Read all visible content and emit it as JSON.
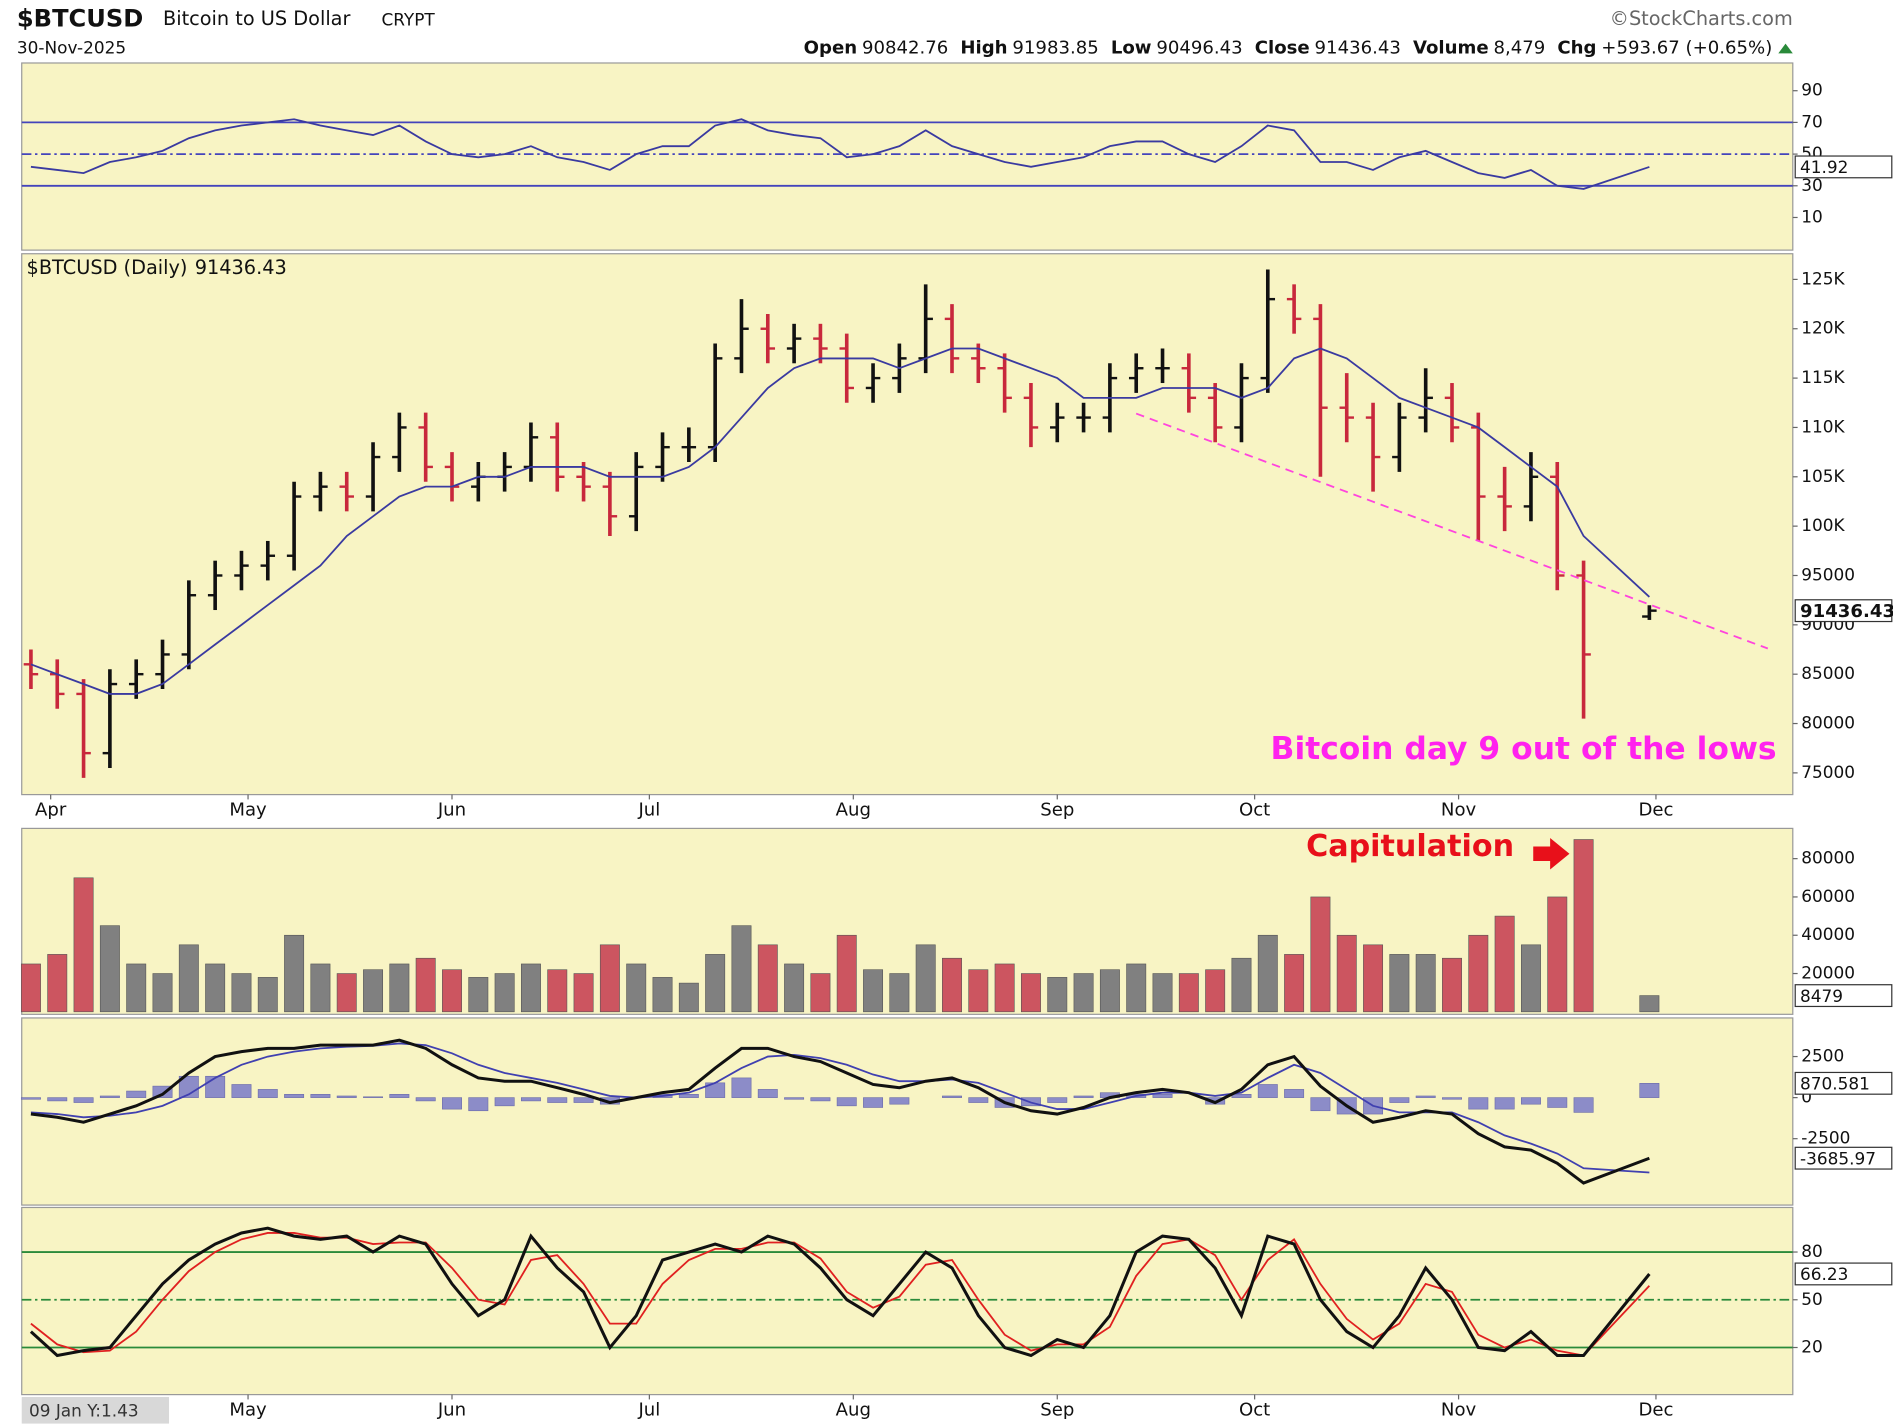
{
  "header": {
    "symbol": "$BTCUSD",
    "name": "Bitcoin to US Dollar",
    "exchange": "CRYPT",
    "date": "30-Nov-2025",
    "brand": "©StockCharts.com",
    "stats": [
      "Open",
      "High",
      "Low",
      "Close",
      "Volume",
      "Chg"
    ],
    "volume": "8,479",
    "change": "+593.67 (+0.65%)",
    "footer": "09 Jan Y:1.43"
  },
  "chart_data": [
    {
      "type": "ohlc",
      "panel_label": "$BTCUSD (Daily)",
      "up_color": "#111111",
      "down_color": "#c8283c",
      "close_tag": true,
      "xlim": [
        -4.4,
        264.8
      ],
      "xticks": [
        {
          "value": 0,
          "label": "Apr"
        },
        {
          "value": 30,
          "label": "May"
        },
        {
          "value": 61,
          "label": "Jun"
        },
        {
          "value": 91,
          "label": "Jul"
        },
        {
          "value": 122,
          "label": "Aug"
        },
        {
          "value": 153,
          "label": "Sep"
        },
        {
          "value": 183,
          "label": "Oct"
        },
        {
          "value": 214,
          "label": "Nov"
        },
        {
          "value": 244,
          "label": "Dec"
        }
      ],
      "x": [
        -3,
        1,
        5,
        9,
        13,
        17,
        21,
        25,
        29,
        33,
        37,
        41,
        45,
        49,
        53,
        57,
        61,
        65,
        69,
        73,
        77,
        81,
        85,
        89,
        93,
        97,
        101,
        105,
        109,
        113,
        117,
        121,
        125,
        129,
        133,
        137,
        141,
        145,
        149,
        153,
        157,
        161,
        165,
        169,
        173,
        177,
        181,
        185,
        189,
        193,
        197,
        201,
        205,
        209,
        213,
        217,
        221,
        225,
        229,
        233,
        243
      ],
      "open": [
        86000,
        85000,
        83000,
        77000,
        84000,
        85000,
        87000,
        93000,
        95000,
        96000,
        97000,
        103000,
        104000,
        103000,
        107000,
        110000,
        106000,
        104000,
        105000,
        106000,
        109000,
        105000,
        104000,
        101000,
        106000,
        108000,
        108000,
        117000,
        120000,
        118000,
        119000,
        118000,
        114000,
        115000,
        117000,
        121000,
        117000,
        116000,
        113000,
        110000,
        111000,
        111000,
        115000,
        116000,
        116000,
        113000,
        110000,
        115000,
        123000,
        121000,
        112000,
        111000,
        107000,
        111000,
        113000,
        110000,
        103000,
        102000,
        105000,
        95000,
        90842.76
      ],
      "high": [
        87500,
        86500,
        84500,
        85500,
        86500,
        88500,
        94500,
        96500,
        97500,
        98500,
        104500,
        105500,
        105500,
        108500,
        111500,
        111500,
        107500,
        106500,
        107500,
        110500,
        110500,
        106500,
        105500,
        107500,
        109500,
        110000,
        118500,
        123000,
        121500,
        120500,
        120500,
        119500,
        116500,
        118500,
        124500,
        122500,
        118500,
        117500,
        114500,
        112500,
        112500,
        116500,
        117500,
        118000,
        117500,
        114500,
        116500,
        126000,
        124500,
        122500,
        115500,
        112500,
        112500,
        116000,
        114500,
        111500,
        106000,
        107500,
        106500,
        96500,
        91983.85
      ],
      "low": [
        83500,
        81500,
        74500,
        75500,
        82500,
        83500,
        85500,
        91500,
        93500,
        94500,
        95500,
        101500,
        101500,
        101500,
        105500,
        104500,
        102500,
        102500,
        103500,
        104500,
        103500,
        102500,
        99000,
        99500,
        104500,
        106500,
        106500,
        115500,
        116500,
        116500,
        116500,
        112500,
        112500,
        113500,
        115500,
        115500,
        114500,
        111500,
        108000,
        108500,
        109500,
        109500,
        113500,
        114500,
        111500,
        108500,
        108500,
        113500,
        119500,
        105000,
        108500,
        103500,
        105500,
        109500,
        108500,
        98500,
        99500,
        100500,
        93500,
        80500,
        90496.43
      ],
      "close": [
        85000,
        83000,
        77000,
        84000,
        85000,
        87000,
        93000,
        95000,
        96000,
        97000,
        103000,
        104000,
        103000,
        107000,
        110000,
        106000,
        104000,
        105000,
        106000,
        109000,
        105000,
        104000,
        101000,
        106000,
        108000,
        108000,
        117000,
        120000,
        118000,
        119000,
        118000,
        114000,
        115000,
        117000,
        121000,
        117000,
        116000,
        113000,
        110000,
        111000,
        111000,
        115000,
        116000,
        116000,
        113000,
        110000,
        115000,
        123000,
        121000,
        112000,
        111000,
        107000,
        111000,
        113000,
        110000,
        103000,
        102000,
        105000,
        95000,
        87000,
        91436.43
      ],
      "series": [
        {
          "color": "#3a3aa0",
          "values": [
            86000,
            85000,
            84000,
            83000,
            83000,
            84000,
            86000,
            88000,
            90000,
            92000,
            94000,
            96000,
            99000,
            101000,
            103000,
            104000,
            104000,
            105000,
            105000,
            106000,
            106000,
            106000,
            105000,
            105000,
            105000,
            106000,
            108000,
            111000,
            114000,
            116000,
            117000,
            117000,
            117000,
            116000,
            117000,
            118000,
            118000,
            117000,
            116000,
            115000,
            113000,
            113000,
            113000,
            114000,
            114000,
            114000,
            113000,
            114000,
            117000,
            118000,
            117000,
            115000,
            113000,
            112000,
            111000,
            110000,
            108000,
            106000,
            104000,
            99000,
            92823
          ]
        },
        {
          "color": "#ff44dd",
          "dash": true,
          "x": [
            165,
            261
          ],
          "values": [
            111400,
            87600
          ]
        }
      ],
      "ylim": [
        72800,
        127600
      ],
      "yticks": [
        {
          "value": 125000,
          "label": "125K"
        },
        {
          "value": 120000,
          "label": "120K"
        },
        {
          "value": 115000,
          "label": "115K"
        },
        {
          "value": 110000,
          "label": "110K"
        },
        {
          "value": 105000,
          "label": "105K"
        },
        {
          "value": 100000,
          "label": "100K"
        },
        95000,
        90000,
        85000,
        80000,
        75000
      ],
      "annotations": [
        {
          "text": "Bitcoin day 9 out of the lows",
          "color": "#ff22ee"
        }
      ]
    },
    {
      "type": "line",
      "ylim": [
        -10.6,
        107.5
      ],
      "yticks": [
        90,
        70,
        50,
        30,
        10
      ],
      "ref_lines": [
        {
          "value": 70,
          "style": "solid"
        },
        {
          "value": 50,
          "style": "dashdot"
        },
        {
          "value": 30,
          "style": "solid"
        }
      ],
      "ref_color": "#4444bb",
      "series": [
        {
          "color": "#3a3aa0",
          "tag": true,
          "values": [
            42,
            40,
            38,
            45,
            48,
            52,
            60,
            65,
            68,
            70,
            72,
            68,
            65,
            62,
            68,
            58,
            50,
            48,
            50,
            55,
            48,
            45,
            40,
            50,
            55,
            55,
            68,
            72,
            65,
            62,
            60,
            48,
            50,
            55,
            65,
            55,
            50,
            45,
            42,
            45,
            48,
            55,
            58,
            58,
            50,
            45,
            55,
            68,
            65,
            45,
            45,
            40,
            48,
            52,
            45,
            38,
            35,
            40,
            30,
            28,
            41.92
          ]
        }
      ]
    },
    {
      "type": "bar",
      "tag": true,
      "ylim": [
        -1300,
        95800
      ],
      "yticks": [
        80000,
        60000,
        40000,
        20000
      ],
      "values": [
        25000,
        30000,
        70000,
        45000,
        25000,
        20000,
        35000,
        25000,
        20000,
        18000,
        40000,
        25000,
        20000,
        22000,
        25000,
        28000,
        22000,
        18000,
        20000,
        25000,
        22000,
        20000,
        35000,
        25000,
        18000,
        15000,
        30000,
        45000,
        35000,
        25000,
        20000,
        40000,
        22000,
        20000,
        35000,
        28000,
        22000,
        25000,
        20000,
        18000,
        20000,
        22000,
        25000,
        20000,
        20000,
        22000,
        28000,
        40000,
        30000,
        60000,
        40000,
        35000,
        30000,
        30000,
        28000,
        40000,
        50000,
        35000,
        60000,
        90000,
        8479
      ],
      "up_color": "#808080",
      "down_color": "#cc5560",
      "annotations": [
        {
          "text": "Capitulation",
          "color": "#e8101a"
        }
      ]
    },
    {
      "type": "line",
      "ylim": [
        -6540,
        4850
      ],
      "yticks": [
        2500,
        0,
        -2500
      ],
      "series": [
        {
          "style": "bar",
          "color": "#8c8cc8",
          "tag": true,
          "values": [
            -100,
            -200,
            -300,
            100,
            400,
            700,
            1300,
            1300,
            800,
            500,
            200,
            200,
            100,
            50,
            200,
            -200,
            -700,
            -800,
            -500,
            -200,
            -300,
            -300,
            -400,
            0,
            200,
            200,
            900,
            1200,
            500,
            -100,
            -200,
            -500,
            -600,
            -400,
            0,
            100,
            -300,
            -600,
            -500,
            -300,
            100,
            300,
            200,
            200,
            0,
            -400,
            200,
            800,
            500,
            -800,
            -1000,
            -1000,
            -300,
            100,
            -100,
            -700,
            -700,
            -400,
            -600,
            -900,
            870.581
          ]
        },
        {
          "color": "#4040b0",
          "values": [
            -900,
            -1000,
            -1200,
            -1100,
            -900,
            -500,
            200,
            1200,
            2000,
            2500,
            2800,
            3000,
            3100,
            3150,
            3300,
            3200,
            2700,
            2000,
            1500,
            1200,
            900,
            500,
            100,
            0,
            100,
            300,
            900,
            1800,
            2500,
            2600,
            2400,
            2000,
            1400,
            1000,
            1000,
            1100,
            900,
            300,
            -300,
            -700,
            -700,
            -300,
            100,
            300,
            300,
            100,
            300,
            1200,
            2000,
            1500,
            500,
            -500,
            -900,
            -900,
            -900,
            -1500,
            -2300,
            -2800,
            -3400,
            -4300,
            -4556.55
          ]
        },
        {
          "color": "#111111",
          "width": 2.5,
          "tag": true,
          "values": [
            -1000,
            -1200,
            -1500,
            -1000,
            -500,
            200,
            1500,
            2500,
            2800,
            3000,
            3000,
            3200,
            3200,
            3200,
            3500,
            3000,
            2000,
            1200,
            1000,
            1000,
            600,
            200,
            -300,
            0,
            300,
            500,
            1800,
            3000,
            3000,
            2500,
            2200,
            1500,
            800,
            600,
            1000,
            1200,
            600,
            -300,
            -800,
            -1000,
            -600,
            0,
            300,
            500,
            300,
            -300,
            500,
            2000,
            2500,
            700,
            -500,
            -1500,
            -1200,
            -800,
            -1000,
            -2200,
            -3000,
            -3200,
            -4000,
            -5200,
            -3685.97
          ]
        }
      ]
    },
    {
      "type": "line",
      "ylim": [
        -9.6,
        108
      ],
      "yticks": [
        80,
        50,
        20
      ],
      "ref_lines": [
        {
          "value": 80,
          "style": "solid"
        },
        {
          "value": 50,
          "style": "dashdot"
        },
        {
          "value": 20,
          "style": "solid"
        }
      ],
      "ref_color": "#2a8a3a",
      "xticks": [
        {
          "value": 30,
          "label": "May"
        },
        {
          "value": 61,
          "label": "Jun"
        },
        {
          "value": 91,
          "label": "Jul"
        },
        {
          "value": 122,
          "label": "Aug"
        },
        {
          "value": 153,
          "label": "Sep"
        },
        {
          "value": 183,
          "label": "Oct"
        },
        {
          "value": 214,
          "label": "Nov"
        },
        {
          "value": 244,
          "label": "Dec"
        }
      ],
      "series": [
        {
          "color": "#e02020",
          "values": [
            35,
            22,
            17,
            18,
            30,
            50,
            68,
            80,
            88,
            92,
            92,
            89,
            89,
            85,
            86,
            86,
            70,
            50,
            47,
            75,
            78,
            60,
            35,
            35,
            60,
            75,
            82,
            82,
            86,
            86,
            76,
            55,
            45,
            52,
            72,
            75,
            50,
            28,
            18,
            22,
            22,
            33,
            65,
            85,
            88,
            78,
            50,
            75,
            88,
            60,
            38,
            25,
            35,
            60,
            55,
            28,
            20,
            25,
            18,
            15,
            58.8
          ]
        },
        {
          "color": "#111111",
          "width": 2.5,
          "tag": true,
          "values": [
            30,
            15,
            18,
            20,
            40,
            60,
            75,
            85,
            92,
            95,
            90,
            88,
            90,
            80,
            90,
            85,
            60,
            40,
            50,
            90,
            70,
            55,
            20,
            40,
            75,
            80,
            85,
            80,
            90,
            85,
            70,
            50,
            40,
            60,
            80,
            70,
            40,
            20,
            15,
            25,
            20,
            40,
            80,
            90,
            88,
            70,
            40,
            90,
            85,
            50,
            30,
            20,
            40,
            70,
            50,
            20,
            18,
            30,
            15,
            15,
            66.23
          ]
        }
      ]
    }
  ]
}
